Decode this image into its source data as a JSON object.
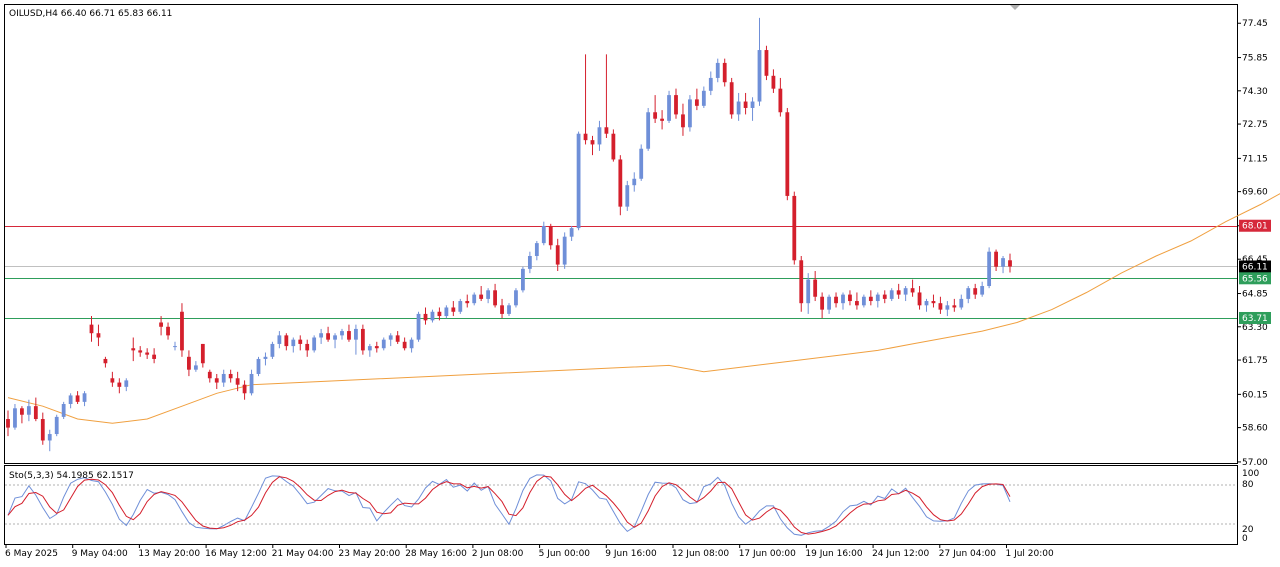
{
  "header": {
    "symbol_info": "OILUSD,H4  66.40 66.71 65.83 66.11"
  },
  "indicator": {
    "label": "Sto(5,3,3) 54.1985 62.1517",
    "levels": [
      "100",
      "80",
      "20",
      "0"
    ]
  },
  "chart_data": [
    {
      "type": "candlestick",
      "title": "OILUSD,H4",
      "ohlc_current": {
        "open": 66.4,
        "high": 66.71,
        "low": 65.83,
        "close": 66.11
      },
      "y_ticks": [
        57.0,
        58.6,
        60.15,
        61.75,
        63.3,
        64.85,
        66.45,
        68.01,
        69.6,
        71.15,
        72.75,
        74.3,
        75.85,
        77.45
      ],
      "ylim": [
        56.95,
        78.3
      ],
      "x_ticks": [
        "6 May 2025",
        "9 May 04:00",
        "13 May 20:00",
        "16 May 12:00",
        "21 May 04:00",
        "23 May 20:00",
        "28 May 16:00",
        "2 Jun 08:00",
        "5 Jun 00:00",
        "9 Jun 16:00",
        "12 Jun 08:00",
        "17 Jun 00:00",
        "19 Jun 16:00",
        "24 Jun 12:00",
        "27 Jun 04:00",
        "1 Jul 20:00"
      ],
      "horizontal_lines": [
        {
          "price": 68.01,
          "label": "68.01",
          "color": "#d6283a"
        },
        {
          "price": 66.11,
          "label": "66.11",
          "color": "#000000"
        },
        {
          "price": 65.56,
          "label": "65.56",
          "color": "#2e9e5b"
        },
        {
          "price": 63.71,
          "label": "63.71",
          "color": "#2e9e5b"
        }
      ],
      "colors": {
        "bull": "#6f8fd8",
        "bear": "#d41f2c",
        "ma": "#f0a040"
      },
      "moving_average_points": [
        [
          0,
          60.0
        ],
        [
          5,
          59.6
        ],
        [
          10,
          59.0
        ],
        [
          15,
          58.8
        ],
        [
          20,
          59.0
        ],
        [
          25,
          59.6
        ],
        [
          30,
          60.2
        ],
        [
          35,
          60.6
        ],
        [
          95,
          61.5
        ],
        [
          100,
          61.2
        ],
        [
          105,
          61.4
        ],
        [
          110,
          61.6
        ],
        [
          115,
          61.8
        ],
        [
          120,
          62.0
        ],
        [
          125,
          62.2
        ],
        [
          130,
          62.5
        ],
        [
          135,
          62.8
        ],
        [
          140,
          63.1
        ],
        [
          145,
          63.5
        ],
        [
          150,
          64.1
        ],
        [
          155,
          64.9
        ],
        [
          160,
          65.8
        ],
        [
          165,
          66.6
        ],
        [
          170,
          67.3
        ],
        [
          175,
          68.2
        ],
        [
          180,
          69.0
        ],
        [
          185,
          69.9
        ],
        [
          190,
          70.8
        ],
        [
          195,
          71.4
        ],
        [
          200,
          71.3
        ],
        [
          205,
          71.0
        ],
        [
          210,
          70.6
        ],
        [
          215,
          70.1
        ],
        [
          220,
          69.5
        ],
        [
          225,
          68.6
        ],
        [
          230,
          67.6
        ],
        [
          235,
          66.6
        ],
        [
          240,
          65.6
        ]
      ],
      "candles": [
        [
          59.0,
          59.4,
          58.2,
          58.6
        ],
        [
          58.6,
          59.7,
          58.5,
          59.5
        ],
        [
          59.5,
          59.6,
          58.8,
          59.2
        ],
        [
          59.2,
          59.9,
          58.9,
          59.6
        ],
        [
          59.6,
          60.0,
          58.9,
          59.0
        ],
        [
          59.0,
          59.3,
          57.8,
          58.0
        ],
        [
          58.0,
          58.5,
          57.5,
          58.3
        ],
        [
          58.3,
          59.2,
          58.2,
          59.1
        ],
        [
          59.1,
          59.8,
          59.0,
          59.7
        ],
        [
          59.7,
          60.2,
          59.5,
          60.1
        ],
        [
          60.1,
          60.3,
          59.7,
          59.8
        ],
        [
          59.8,
          60.3,
          59.6,
          60.2
        ],
        [
          63.4,
          63.8,
          62.6,
          63.0
        ],
        [
          63.0,
          63.4,
          62.4,
          62.8
        ],
        [
          61.8,
          61.9,
          61.4,
          61.6
        ],
        [
          60.9,
          61.2,
          60.5,
          60.7
        ],
        [
          60.7,
          60.9,
          60.2,
          60.5
        ],
        [
          60.5,
          60.9,
          60.3,
          60.8
        ],
        [
          62.3,
          62.8,
          61.7,
          62.2
        ],
        [
          62.2,
          62.4,
          61.9,
          62.1
        ],
        [
          62.1,
          62.3,
          61.8,
          62.0
        ],
        [
          62.0,
          62.3,
          61.6,
          61.8
        ],
        [
          63.5,
          63.8,
          62.9,
          63.3
        ],
        [
          63.3,
          63.5,
          62.7,
          62.9
        ],
        [
          62.4,
          62.6,
          62.2,
          62.4
        ],
        [
          64.0,
          64.4,
          61.9,
          62.2
        ],
        [
          61.9,
          62.2,
          61.0,
          61.3
        ],
        [
          61.3,
          61.7,
          61.2,
          61.5
        ],
        [
          62.5,
          62.5,
          61.4,
          61.6
        ],
        [
          61.2,
          61.3,
          60.7,
          60.9
        ],
        [
          60.9,
          61.1,
          60.4,
          60.7
        ],
        [
          60.7,
          61.3,
          60.5,
          61.1
        ],
        [
          61.1,
          61.3,
          60.7,
          60.9
        ],
        [
          60.9,
          61.2,
          60.3,
          60.6
        ],
        [
          60.6,
          60.8,
          59.9,
          60.2
        ],
        [
          60.2,
          61.3,
          60.1,
          61.1
        ],
        [
          61.1,
          61.9,
          61.0,
          61.8
        ],
        [
          61.8,
          62.1,
          61.5,
          61.9
        ],
        [
          61.9,
          62.6,
          61.8,
          62.5
        ],
        [
          62.5,
          63.1,
          62.3,
          62.9
        ],
        [
          62.9,
          63.0,
          62.2,
          62.4
        ],
        [
          62.4,
          62.8,
          62.1,
          62.7
        ],
        [
          62.7,
          62.9,
          62.2,
          62.5
        ],
        [
          62.5,
          62.7,
          61.9,
          62.2
        ],
        [
          62.2,
          62.9,
          62.1,
          62.8
        ],
        [
          62.8,
          63.2,
          62.5,
          63.0
        ],
        [
          63.0,
          63.3,
          62.6,
          62.7
        ],
        [
          62.7,
          63.0,
          62.3,
          62.9
        ],
        [
          62.9,
          63.2,
          62.7,
          63.1
        ],
        [
          63.1,
          63.4,
          62.6,
          62.7
        ],
        [
          62.7,
          63.4,
          62.0,
          63.2
        ],
        [
          63.2,
          63.4,
          62.0,
          62.2
        ],
        [
          62.2,
          62.5,
          61.9,
          62.4
        ],
        [
          62.4,
          62.6,
          62.1,
          62.3
        ],
        [
          62.3,
          62.8,
          62.2,
          62.7
        ],
        [
          62.7,
          63.0,
          62.4,
          62.9
        ],
        [
          62.9,
          63.1,
          62.5,
          62.6
        ],
        [
          62.6,
          62.8,
          62.2,
          62.3
        ],
        [
          62.3,
          62.8,
          62.1,
          62.7
        ],
        [
          62.7,
          64.0,
          62.6,
          63.9
        ],
        [
          63.9,
          64.2,
          63.4,
          63.6
        ],
        [
          63.6,
          64.1,
          63.5,
          64.0
        ],
        [
          64.0,
          64.2,
          63.6,
          63.8
        ],
        [
          63.8,
          64.3,
          63.7,
          64.2
        ],
        [
          64.2,
          64.5,
          63.8,
          64.0
        ],
        [
          64.0,
          64.6,
          63.9,
          64.5
        ],
        [
          64.5,
          64.8,
          64.2,
          64.4
        ],
        [
          64.4,
          64.9,
          64.3,
          64.8
        ],
        [
          64.8,
          65.2,
          64.5,
          64.6
        ],
        [
          64.6,
          65.1,
          64.4,
          65.0
        ],
        [
          65.0,
          65.3,
          64.2,
          64.3
        ],
        [
          64.3,
          64.6,
          63.7,
          63.9
        ],
        [
          63.9,
          64.4,
          63.8,
          64.3
        ],
        [
          64.3,
          65.1,
          64.2,
          65.0
        ],
        [
          65.0,
          66.1,
          64.9,
          66.0
        ],
        [
          66.0,
          66.8,
          65.8,
          66.6
        ],
        [
          66.6,
          67.3,
          66.4,
          67.2
        ],
        [
          67.2,
          68.2,
          67.1,
          68.0
        ],
        [
          68.0,
          68.1,
          66.9,
          67.1
        ],
        [
          67.1,
          67.4,
          65.9,
          66.2
        ],
        [
          66.2,
          67.7,
          66.0,
          67.5
        ],
        [
          67.5,
          68.0,
          67.3,
          67.9
        ],
        [
          67.9,
          72.4,
          67.8,
          72.3
        ],
        [
          72.3,
          76.0,
          71.8,
          72.0
        ],
        [
          72.0,
          72.2,
          71.3,
          71.8
        ],
        [
          71.8,
          72.9,
          71.5,
          72.6
        ],
        [
          72.6,
          76.0,
          72.1,
          72.3
        ],
        [
          72.3,
          72.5,
          71.0,
          71.1
        ],
        [
          71.1,
          71.3,
          68.5,
          68.9
        ],
        [
          68.9,
          70.1,
          68.7,
          69.9
        ],
        [
          69.9,
          70.5,
          69.6,
          70.2
        ],
        [
          70.2,
          71.8,
          70.1,
          71.6
        ],
        [
          71.6,
          73.5,
          71.5,
          73.3
        ],
        [
          73.3,
          74.1,
          72.8,
          73.0
        ],
        [
          73.0,
          73.4,
          72.5,
          72.9
        ],
        [
          72.9,
          74.3,
          72.8,
          74.1
        ],
        [
          74.1,
          74.4,
          73.0,
          73.2
        ],
        [
          73.2,
          73.7,
          72.2,
          72.6
        ],
        [
          72.6,
          74.1,
          72.4,
          73.9
        ],
        [
          73.9,
          74.4,
          73.4,
          73.6
        ],
        [
          73.6,
          74.5,
          73.5,
          74.3
        ],
        [
          74.3,
          75.2,
          74.1,
          74.9
        ],
        [
          74.9,
          75.8,
          74.7,
          75.6
        ],
        [
          75.6,
          75.8,
          74.5,
          74.7
        ],
        [
          74.7,
          74.9,
          73.0,
          73.2
        ],
        [
          73.2,
          74.2,
          72.9,
          73.8
        ],
        [
          73.8,
          74.2,
          73.2,
          73.5
        ],
        [
          73.5,
          74.0,
          72.9,
          73.8
        ],
        [
          73.8,
          77.7,
          73.6,
          76.2
        ],
        [
          76.2,
          76.4,
          74.8,
          75.0
        ],
        [
          75.0,
          75.3,
          74.2,
          74.4
        ],
        [
          74.4,
          74.9,
          73.1,
          73.3
        ],
        [
          73.3,
          73.5,
          69.2,
          69.4
        ],
        [
          69.4,
          69.6,
          66.2,
          66.4
        ],
        [
          66.4,
          66.6,
          64.0,
          64.4
        ],
        [
          64.4,
          65.8,
          63.9,
          65.5
        ],
        [
          65.5,
          65.9,
          64.5,
          64.7
        ],
        [
          64.7,
          64.9,
          63.7,
          64.1
        ],
        [
          64.1,
          64.8,
          63.9,
          64.7
        ],
        [
          64.7,
          64.9,
          64.2,
          64.4
        ],
        [
          64.4,
          64.9,
          64.1,
          64.8
        ],
        [
          64.8,
          65.0,
          64.3,
          64.5
        ],
        [
          64.5,
          64.9,
          64.1,
          64.3
        ],
        [
          64.3,
          64.8,
          64.2,
          64.7
        ],
        [
          64.7,
          65.0,
          64.3,
          64.5
        ],
        [
          64.5,
          64.9,
          64.2,
          64.8
        ],
        [
          64.8,
          65.0,
          64.4,
          64.6
        ],
        [
          64.6,
          65.1,
          64.5,
          65.0
        ],
        [
          65.0,
          65.3,
          64.6,
          64.8
        ],
        [
          64.8,
          65.2,
          64.5,
          65.1
        ],
        [
          65.1,
          65.5,
          64.7,
          64.9
        ],
        [
          64.9,
          65.2,
          64.1,
          64.3
        ],
        [
          64.3,
          64.6,
          64.0,
          64.5
        ],
        [
          64.5,
          64.8,
          64.2,
          64.4
        ],
        [
          64.4,
          64.7,
          63.9,
          64.1
        ],
        [
          64.1,
          64.5,
          63.8,
          64.3
        ],
        [
          64.3,
          64.6,
          64.0,
          64.2
        ],
        [
          64.2,
          64.8,
          64.1,
          64.6
        ],
        [
          64.6,
          65.2,
          64.4,
          65.1
        ],
        [
          65.1,
          65.3,
          64.6,
          64.8
        ],
        [
          64.8,
          65.4,
          64.7,
          65.2
        ],
        [
          65.2,
          67.0,
          65.1,
          66.8
        ],
        [
          66.8,
          66.9,
          65.9,
          66.1
        ],
        [
          66.1,
          66.6,
          65.8,
          66.5
        ],
        [
          66.4,
          66.71,
          65.83,
          66.11
        ]
      ],
      "stochastic": {
        "label": "Sto(5,3,3)",
        "main_last": 54.1985,
        "signal_last": 62.1517,
        "levels": [
          0,
          20,
          80,
          100
        ]
      }
    }
  ]
}
